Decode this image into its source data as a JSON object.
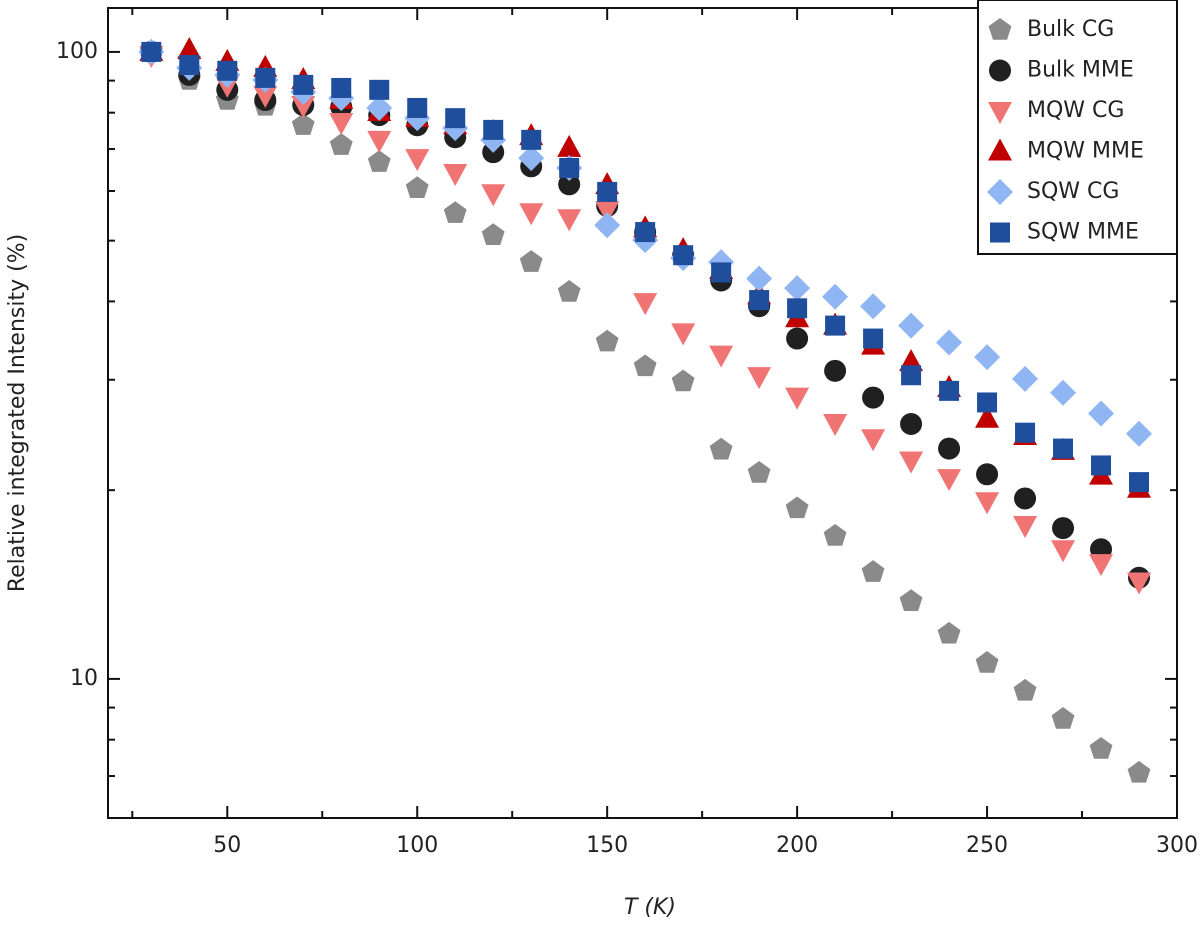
{
  "chart_data": {
    "type": "scatter",
    "x_label": "T (K)",
    "y_label": "Relative integrated Intensity (%)",
    "x": [
      30,
      40,
      50,
      60,
      70,
      80,
      90,
      100,
      110,
      120,
      130,
      140,
      150,
      160,
      170,
      180,
      190,
      200,
      210,
      220,
      230,
      240,
      250,
      260,
      270,
      280,
      290
    ],
    "series": [
      {
        "name": "Bulk CG",
        "color": "#8a8a8a",
        "marker": "pentagon",
        "values": [
          100,
          90.2,
          83.8,
          82.0,
          76.4,
          71.0,
          66.7,
          60.6,
          55.3,
          51.0,
          46.2,
          41.4,
          34.5,
          31.5,
          29.8,
          23.2,
          21.3,
          18.7,
          16.9,
          14.8,
          13.3,
          11.8,
          10.6,
          9.57,
          8.63,
          7.73,
          7.08
        ]
      },
      {
        "name": "Bulk MME",
        "color": "#202020",
        "marker": "circle",
        "values": [
          100,
          91.9,
          87.0,
          83.8,
          82.3,
          81.7,
          79.3,
          76.4,
          73.1,
          69.2,
          65.7,
          61.5,
          56.8,
          51.6,
          47.4,
          43.2,
          39.3,
          34.9,
          31.0,
          28.1,
          25.5,
          23.3,
          21.2,
          19.4,
          17.4,
          16.1,
          14.5
        ]
      },
      {
        "name": "MQW CG",
        "color": "#f07474",
        "marker": "triangle-down",
        "values": [
          98.9,
          95.3,
          88.6,
          85.4,
          82.3,
          77.3,
          72.4,
          67.7,
          64.1,
          59.5,
          55.5,
          54.3,
          55.9,
          39.9,
          35.7,
          32.9,
          30.4,
          28.2,
          25.6,
          24.2,
          22.3,
          20.9,
          19.2,
          17.6,
          16.1,
          15.3,
          14.3
        ]
      },
      {
        "name": "MQW MME",
        "color": "#c00000",
        "marker": "triangle",
        "values": [
          100,
          100.7,
          96.4,
          94.3,
          90.2,
          83.8,
          80.2,
          78.4,
          76.4,
          74.5,
          73.4,
          70.3,
          61.3,
          52.3,
          48.3,
          44.9,
          40.9,
          37.6,
          36.6,
          34.0,
          32.0,
          29.1,
          26.0,
          24.4,
          23.1,
          21.1,
          20.1
        ]
      },
      {
        "name": "SQW CG",
        "color": "#8fb6f2",
        "marker": "diamond",
        "values": [
          100,
          94.3,
          91.9,
          90.2,
          86.3,
          84.4,
          81.4,
          78.4,
          75.6,
          72.4,
          67.7,
          65.3,
          52.9,
          50.1,
          46.9,
          46.2,
          43.5,
          42.0,
          40.7,
          39.3,
          36.6,
          34.4,
          32.6,
          30.1,
          28.6,
          26.5,
          24.6
        ]
      },
      {
        "name": "SQW MME",
        "color": "#1f4e9c",
        "marker": "square",
        "values": [
          100,
          95.3,
          93.3,
          90.9,
          88.6,
          87.6,
          87.0,
          81.4,
          78.4,
          75.1,
          72.4,
          65.3,
          59.8,
          51.6,
          47.4,
          44.5,
          40.2,
          39.0,
          36.6,
          34.9,
          30.5,
          28.8,
          27.6,
          24.7,
          23.3,
          21.9,
          20.6
        ]
      }
    ],
    "xlim": [
      18.6,
      300
    ],
    "ylim": [
      6,
      117.5
    ],
    "y_log": true,
    "xticks": [
      50,
      100,
      150,
      200,
      250,
      300
    ],
    "xminorticks": [
      25,
      75,
      125,
      175,
      225,
      275
    ],
    "yticks": [
      10,
      100
    ],
    "yminorticks": [
      6,
      7,
      8,
      9,
      20,
      30,
      40,
      50,
      60,
      70,
      80,
      90
    ],
    "legend": "upper right"
  }
}
